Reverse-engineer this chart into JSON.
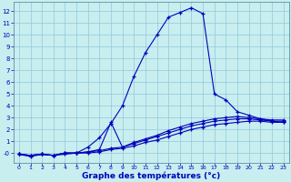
{
  "xlabel": "Graphe des températures (°c)",
  "bg_color": "#c8eef0",
  "line_color": "#0000bb",
  "grid_color": "#90c8d8",
  "xlim": [
    -0.5,
    23.5
  ],
  "ylim": [
    -0.8,
    12.8
  ],
  "xticks": [
    0,
    1,
    2,
    3,
    4,
    5,
    6,
    7,
    8,
    9,
    10,
    11,
    12,
    13,
    14,
    15,
    16,
    17,
    18,
    19,
    20,
    21,
    22,
    23
  ],
  "ytick_vals": [
    0,
    1,
    2,
    3,
    4,
    5,
    6,
    7,
    8,
    9,
    10,
    11,
    12
  ],
  "ytick_labels": [
    "-0",
    "1",
    "2",
    "3",
    "4",
    "5",
    "6",
    "7",
    "8",
    "9",
    "10",
    "11",
    "12"
  ],
  "curve_main_x": [
    0,
    1,
    2,
    3,
    4,
    5,
    6,
    7,
    8,
    9,
    10,
    11,
    12,
    13,
    14,
    15,
    16,
    17,
    18,
    19,
    20,
    21,
    22,
    23
  ],
  "curve_main_y": [
    -0.1,
    -0.2,
    -0.1,
    -0.2,
    0.0,
    0.0,
    0.5,
    1.3,
    2.5,
    4.0,
    6.5,
    8.5,
    10.0,
    11.5,
    11.9,
    12.3,
    11.8,
    5.0,
    4.5,
    3.5,
    3.2,
    2.9,
    2.7,
    2.6
  ],
  "curve_flat1_x": [
    0,
    1,
    2,
    3,
    4,
    5,
    6,
    7,
    8,
    9,
    10,
    11,
    12,
    13,
    14,
    15,
    16,
    17,
    18,
    19,
    20,
    21,
    22,
    23
  ],
  "curve_flat1_y": [
    -0.1,
    -0.3,
    -0.1,
    -0.2,
    -0.1,
    0.0,
    0.0,
    0.1,
    0.3,
    0.4,
    0.6,
    0.9,
    1.1,
    1.4,
    1.7,
    2.0,
    2.2,
    2.4,
    2.5,
    2.6,
    2.7,
    2.7,
    2.6,
    2.6
  ],
  "curve_flat2_x": [
    0,
    1,
    2,
    3,
    4,
    5,
    6,
    7,
    8,
    9,
    10,
    11,
    12,
    13,
    14,
    15,
    16,
    17,
    18,
    19,
    20,
    21,
    22,
    23
  ],
  "curve_flat2_y": [
    -0.1,
    -0.2,
    -0.1,
    -0.2,
    0.0,
    0.0,
    0.1,
    0.2,
    0.4,
    0.5,
    0.8,
    1.1,
    1.4,
    1.7,
    2.0,
    2.3,
    2.5,
    2.7,
    2.8,
    2.9,
    2.9,
    2.8,
    2.7,
    2.7
  ],
  "curve_flat3_x": [
    0,
    1,
    2,
    3,
    4,
    5,
    6,
    7,
    8,
    9,
    10,
    11,
    12,
    13,
    14,
    15,
    16,
    17,
    18,
    19,
    20,
    21,
    22,
    23
  ],
  "curve_flat3_y": [
    -0.1,
    -0.2,
    -0.1,
    -0.2,
    0.0,
    0.0,
    0.1,
    0.3,
    2.6,
    0.5,
    0.9,
    1.2,
    1.5,
    1.9,
    2.2,
    2.5,
    2.7,
    2.9,
    3.0,
    3.1,
    3.0,
    2.9,
    2.8,
    2.8
  ]
}
